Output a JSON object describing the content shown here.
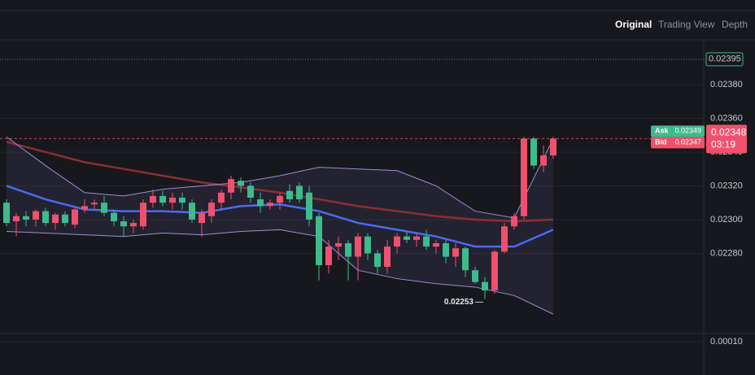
{
  "header": {
    "tabs": [
      "Original",
      "Trading View",
      "Depth"
    ]
  },
  "chart_data": {
    "type": "candlestick",
    "open": [
      0.0231,
      0.02299,
      0.02302,
      0.023,
      0.02305,
      0.02298,
      0.02303,
      0.02297,
      0.02306,
      0.02309,
      0.0231,
      0.02304,
      0.02299,
      0.02296,
      0.02296,
      0.0231,
      0.02314,
      0.0231,
      0.02313,
      0.0231,
      0.02298,
      0.02302,
      0.0231,
      0.02316,
      0.02323,
      0.0232,
      0.02312,
      0.02308,
      0.0231,
      0.02317,
      0.0232,
      0.02316,
      0.02302,
      0.02273,
      0.02284,
      0.02286,
      0.02278,
      0.0229,
      0.0228,
      0.02272,
      0.02284,
      0.0229,
      0.02288,
      0.0229,
      0.02284,
      0.02286,
      0.02278,
      0.02283,
      0.0227,
      0.02263,
      0.02258,
      0.02281,
      0.02296,
      0.02302,
      0.02348,
      0.02332,
      0.02338
    ],
    "high": [
      0.02312,
      0.02304,
      0.02305,
      0.02306,
      0.02307,
      0.02304,
      0.02305,
      0.02307,
      0.02312,
      0.02312,
      0.02314,
      0.02306,
      0.02302,
      0.023,
      0.02312,
      0.02318,
      0.02317,
      0.02316,
      0.02316,
      0.02312,
      0.02306,
      0.02312,
      0.02318,
      0.02326,
      0.02325,
      0.02322,
      0.02316,
      0.02312,
      0.02316,
      0.02321,
      0.02322,
      0.0232,
      0.02304,
      0.02288,
      0.0229,
      0.02288,
      0.02292,
      0.02292,
      0.02282,
      0.02288,
      0.02292,
      0.02293,
      0.02292,
      0.02294,
      0.02288,
      0.02288,
      0.02286,
      0.02284,
      0.02272,
      0.02266,
      0.02282,
      0.02298,
      0.02304,
      0.02349,
      0.02349,
      0.02344,
      0.02349
    ],
    "low": [
      0.02296,
      0.0229,
      0.02296,
      0.02296,
      0.02296,
      0.02294,
      0.02296,
      0.02295,
      0.02304,
      0.02306,
      0.02302,
      0.02296,
      0.0229,
      0.02292,
      0.02294,
      0.02307,
      0.02308,
      0.02306,
      0.02306,
      0.02298,
      0.0229,
      0.02298,
      0.02306,
      0.02312,
      0.02316,
      0.0231,
      0.02304,
      0.02306,
      0.02306,
      0.0231,
      0.0231,
      0.02296,
      0.02264,
      0.02268,
      0.02276,
      0.02264,
      0.02264,
      0.02276,
      0.02268,
      0.02268,
      0.0228,
      0.02286,
      0.02284,
      0.02282,
      0.0228,
      0.02274,
      0.02272,
      0.02266,
      0.02262,
      0.02253,
      0.02256,
      0.0228,
      0.02294,
      0.023,
      0.0233,
      0.02328,
      0.02336
    ],
    "close": [
      0.02298,
      0.02302,
      0.023,
      0.02305,
      0.02298,
      0.02303,
      0.02298,
      0.02306,
      0.02308,
      0.0231,
      0.02304,
      0.02299,
      0.02296,
      0.02298,
      0.0231,
      0.02314,
      0.0231,
      0.02313,
      0.0231,
      0.023,
      0.02304,
      0.0231,
      0.02316,
      0.02324,
      0.0232,
      0.02313,
      0.02308,
      0.0231,
      0.02314,
      0.02312,
      0.02312,
      0.023,
      0.02273,
      0.02284,
      0.02286,
      0.02278,
      0.0229,
      0.0228,
      0.02272,
      0.02284,
      0.0229,
      0.02288,
      0.0229,
      0.02284,
      0.02286,
      0.02278,
      0.02283,
      0.0227,
      0.02263,
      0.02258,
      0.02281,
      0.02296,
      0.02302,
      0.02348,
      0.02332,
      0.02338,
      0.02348
    ],
    "colors": {
      "up": "#f0506e",
      "down": "#3dbb8c"
    },
    "lines": [
      {
        "color": "#8a2f33",
        "x": [
          0,
          4,
          8,
          12,
          16,
          20,
          24,
          28,
          32,
          36,
          40,
          44,
          48,
          52,
          56
        ],
        "values": [
          0.02346,
          0.0234,
          0.02334,
          0.0233,
          0.02326,
          0.02322,
          0.02319,
          0.02316,
          0.02312,
          0.02308,
          0.02305,
          0.02302,
          0.023,
          0.02299,
          0.023
        ]
      },
      {
        "color": "#4a6cf0",
        "x": [
          0,
          4,
          8,
          12,
          16,
          20,
          24,
          28,
          32,
          36,
          40,
          44,
          48,
          52,
          56
        ],
        "values": [
          0.0232,
          0.02312,
          0.02306,
          0.02305,
          0.02305,
          0.02304,
          0.02308,
          0.02309,
          0.02305,
          0.02298,
          0.02294,
          0.0229,
          0.02284,
          0.02284,
          0.02294
        ]
      },
      {
        "color": "#9b8fd6",
        "x": [
          0,
          4,
          8,
          12,
          16,
          20,
          24,
          28,
          32,
          36,
          40,
          44,
          48,
          52,
          56
        ],
        "values": [
          0.02349,
          0.02332,
          0.02316,
          0.02314,
          0.02318,
          0.0232,
          0.02322,
          0.02326,
          0.02331,
          0.0233,
          0.02329,
          0.0232,
          0.02305,
          0.02301,
          0.02348
        ]
      },
      {
        "color": "#9b8fd6",
        "x": [
          0,
          4,
          8,
          12,
          16,
          20,
          24,
          28,
          32,
          36,
          40,
          44,
          48,
          52,
          56
        ],
        "values": [
          0.02293,
          0.02292,
          0.02291,
          0.0229,
          0.02292,
          0.02291,
          0.02293,
          0.02294,
          0.0229,
          0.0227,
          0.02265,
          0.02262,
          0.0226,
          0.02255,
          0.02244
        ]
      }
    ],
    "ylim": [
      0.022325,
      0.02406
    ],
    "yticks": [
      {
        "value": 0.0238,
        "label": "0.02380"
      },
      {
        "value": 0.0236,
        "label": "0.02360"
      },
      {
        "value": 0.0234,
        "label": "0.02340"
      },
      {
        "value": 0.0232,
        "label": "0.02320"
      },
      {
        "value": 0.023,
        "label": "0.02300"
      },
      {
        "value": 0.0228,
        "label": "0.02280"
      }
    ],
    "reference_line": 0.02395,
    "countdown": "03:19",
    "ask": {
      "label": "Ask",
      "value": 0.02349
    },
    "bid": {
      "label": "Bid",
      "value": 0.02347
    },
    "volume": {
      "ylim": [
        0,
        0.000124
      ],
      "yticks": [
        {
          "value": 0.0001,
          "label": "0.00010"
        }
      ]
    }
  }
}
